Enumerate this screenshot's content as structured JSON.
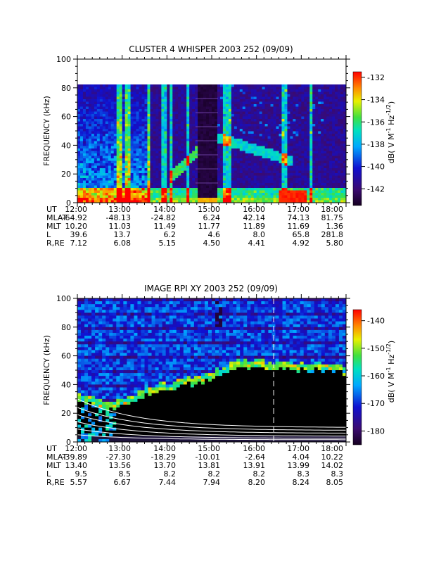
{
  "chart_data": [
    {
      "type": "heatmap",
      "title": "CLUSTER 4 WHISPER 2003 252 (09/09)",
      "ylabel": "FREQUENCY (kHz)",
      "ylim": [
        0,
        100
      ],
      "data_ylim": [
        0,
        80
      ],
      "yticks": [
        "0",
        "20",
        "40",
        "60",
        "80",
        "100"
      ],
      "xticks": [
        "12:00",
        "13:00",
        "14:00",
        "15:00",
        "16:00",
        "17:00",
        "18:00"
      ],
      "colorbar": {
        "label": "dB( V M⁻¹ Hz⁻¹ᐟ²)",
        "label_main": "dB( V M",
        "label_sup1": "-1",
        "label_mid": " Hz",
        "label_sup2": "-1/2",
        "label_end": ")",
        "ticks": [
          "-132",
          "-134",
          "-136",
          "-138",
          "-140",
          "-142"
        ],
        "range": [
          -143.5,
          -131.5
        ]
      },
      "ephemeris": {
        "labels": [
          "UT",
          "MLAT",
          "MLT",
          "L",
          "R,RE"
        ],
        "values": [
          [
            "12:00",
            "13:00",
            "14:00",
            "15:00",
            "16:00",
            "17:00",
            "18:00"
          ],
          [
            "-64.92",
            "-48.13",
            "-24.82",
            "6.24",
            "42.14",
            "74.13",
            "81.75"
          ],
          [
            "10.20",
            "11.03",
            "11.49",
            "11.77",
            "11.89",
            "11.69",
            "1.36"
          ],
          [
            "39.6",
            "13.7",
            "6.2",
            "4.6",
            "8.0",
            "65.8",
            "281.8"
          ],
          [
            "7.12",
            "6.08",
            "5.15",
            "4.50",
            "4.41",
            "4.92",
            "5.80"
          ]
        ]
      }
    },
    {
      "type": "heatmap",
      "title": "IMAGE RPI XY 2003 252 (09/09)",
      "ylabel": "FREQUENCY (kHz)",
      "ylim": [
        0,
        100
      ],
      "yticks": [
        "0",
        "20",
        "40",
        "60",
        "80",
        "100"
      ],
      "xticks": [
        "12:00",
        "13:00",
        "14:00",
        "15:00",
        "16:00",
        "17:00",
        "18:00"
      ],
      "marker_time": "16:23",
      "colorbar": {
        "label_main": "dB( V M",
        "label_sup1": "-1",
        "label_mid": " Hz",
        "label_sup2": "-1/2",
        "label_end": ")",
        "ticks": [
          "-140",
          "-150",
          "-160",
          "-170",
          "-180"
        ],
        "range": [
          -185,
          -136
        ]
      },
      "ephemeris": {
        "labels": [
          "UT",
          "MLAT",
          "MLT",
          "L",
          "R,RE"
        ],
        "values": [
          [
            "12:00",
            "13:00",
            "14:00",
            "15:00",
            "16:00",
            "17:00",
            "18:00"
          ],
          [
            "-39.89",
            "-27.30",
            "-18.29",
            "-10.01",
            "-2.64",
            "4.04",
            "10.22"
          ],
          [
            "13.40",
            "13.56",
            "13.70",
            "13.81",
            "13.91",
            "13.99",
            "14.02"
          ],
          [
            "9.5",
            "8.5",
            "8.2",
            "8.2",
            "8.2",
            "8.3",
            "8.3"
          ],
          [
            "5.57",
            "6.67",
            "7.44",
            "7.94",
            "8.20",
            "8.24",
            "8.05"
          ]
        ]
      }
    }
  ]
}
